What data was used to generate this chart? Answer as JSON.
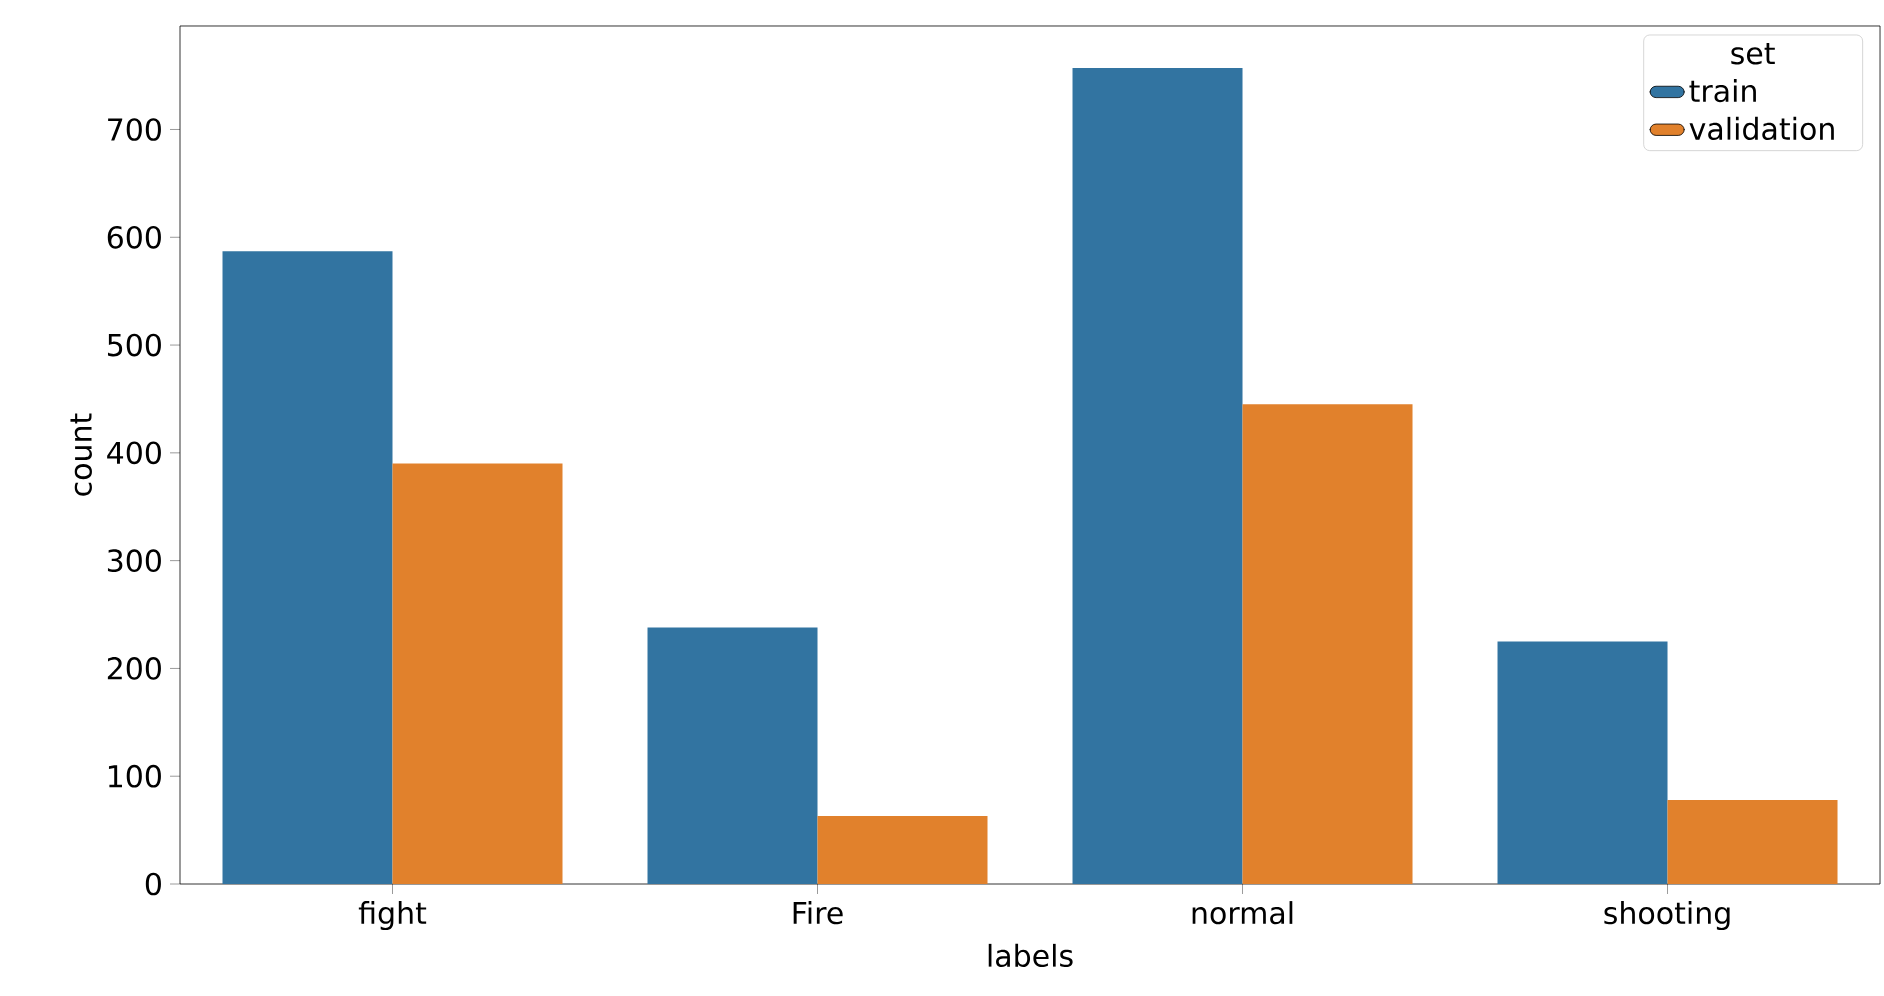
{
  "chart_data": {
    "type": "bar",
    "xlabel": "labels",
    "ylabel": "count",
    "legend_title": "set",
    "legend": "top right",
    "categories": [
      "fight",
      "Fire",
      "normal",
      "shooting"
    ],
    "series": [
      {
        "name": "train",
        "color": "#3274a1",
        "values": [
          587,
          238,
          757,
          225
        ]
      },
      {
        "name": "validation",
        "color": "#e1812c",
        "values": [
          390,
          63,
          445,
          78
        ]
      }
    ],
    "ylim": [
      0,
      796
    ],
    "yticks": [
      0,
      100,
      200,
      300,
      400,
      500,
      600,
      700
    ]
  }
}
